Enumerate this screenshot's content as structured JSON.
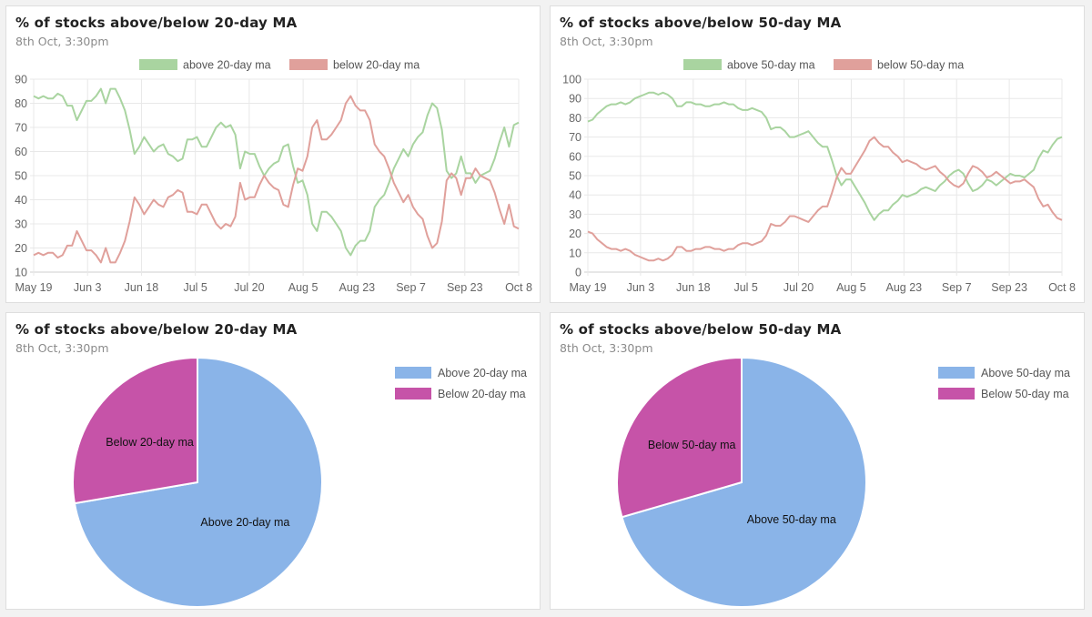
{
  "colors": {
    "above": "#a9d4a0",
    "below": "#e0a09b",
    "pie_above": "#8ab4e8",
    "pie_below": "#c653a8"
  },
  "chart_data": [
    {
      "type": "line",
      "title": "% of stocks above/below 20-day MA",
      "subtitle": "8th Oct, 3:30pm",
      "xlabels": [
        "May 19",
        "Jun 3",
        "Jun 18",
        "Jul 5",
        "Jul 20",
        "Aug 5",
        "Aug 23",
        "Sep 7",
        "Sep 23",
        "Oct 8"
      ],
      "ylim": [
        10,
        90
      ],
      "yticks": [
        10,
        20,
        30,
        40,
        50,
        60,
        70,
        80,
        90
      ],
      "series": [
        {
          "name": "above 20-day ma",
          "color": "#a9d4a0",
          "values": [
            83,
            82,
            83,
            82,
            82,
            84,
            83,
            79,
            79,
            73,
            77,
            81,
            81,
            83,
            86,
            80,
            86,
            86,
            82,
            77,
            69,
            59,
            62,
            66,
            63,
            60,
            62,
            63,
            59,
            58,
            56,
            57,
            65,
            65,
            66,
            62,
            62,
            66,
            70,
            72,
            70,
            71,
            67,
            53,
            60,
            59,
            59,
            54,
            50,
            53,
            55,
            56,
            62,
            63,
            54,
            47,
            48,
            42,
            30,
            27,
            35,
            35,
            33,
            30,
            27,
            20,
            17,
            21,
            23,
            23,
            27,
            37,
            40,
            42,
            47,
            53,
            57,
            61,
            58,
            63,
            66,
            68,
            75,
            80,
            78,
            69,
            52,
            49,
            51,
            58,
            51,
            51,
            47,
            50,
            51,
            52,
            57,
            64,
            70,
            62,
            71,
            72
          ]
        },
        {
          "name": "below 20-day ma",
          "color": "#e0a09b",
          "values": [
            17,
            18,
            17,
            18,
            18,
            16,
            17,
            21,
            21,
            27,
            23,
            19,
            19,
            17,
            14,
            20,
            14,
            14,
            18,
            23,
            31,
            41,
            38,
            34,
            37,
            40,
            38,
            37,
            41,
            42,
            44,
            43,
            35,
            35,
            34,
            38,
            38,
            34,
            30,
            28,
            30,
            29,
            33,
            47,
            40,
            41,
            41,
            46,
            50,
            47,
            45,
            44,
            38,
            37,
            46,
            53,
            52,
            58,
            70,
            73,
            65,
            65,
            67,
            70,
            73,
            80,
            83,
            79,
            77,
            77,
            73,
            63,
            60,
            58,
            53,
            47,
            43,
            39,
            42,
            37,
            34,
            32,
            25,
            20,
            22,
            31,
            48,
            51,
            49,
            42,
            49,
            49,
            53,
            50,
            49,
            48,
            43,
            36,
            30,
            38,
            29,
            28
          ]
        }
      ]
    },
    {
      "type": "line",
      "title": "% of stocks above/below 50-day MA",
      "subtitle": "8th Oct, 3:30pm",
      "xlabels": [
        "May 19",
        "Jun 3",
        "Jun 18",
        "Jul 5",
        "Jul 20",
        "Aug 5",
        "Aug 23",
        "Sep 7",
        "Sep 23",
        "Oct 8"
      ],
      "ylim": [
        0,
        100
      ],
      "yticks": [
        0,
        10,
        20,
        30,
        40,
        50,
        60,
        70,
        80,
        90,
        100
      ],
      "series": [
        {
          "name": "above 50-day ma",
          "color": "#a9d4a0",
          "values": [
            78,
            79,
            82,
            84,
            86,
            87,
            87,
            88,
            87,
            88,
            90,
            91,
            92,
            93,
            93,
            92,
            93,
            92,
            90,
            86,
            86,
            88,
            88,
            87,
            87,
            86,
            86,
            87,
            87,
            88,
            87,
            87,
            85,
            84,
            84,
            85,
            84,
            83,
            80,
            74,
            75,
            75,
            73,
            70,
            70,
            71,
            72,
            73,
            70,
            67,
            65,
            65,
            58,
            50,
            45,
            48,
            48,
            44,
            40,
            36,
            31,
            27,
            30,
            32,
            32,
            35,
            37,
            40,
            39,
            40,
            41,
            43,
            44,
            43,
            42,
            45,
            47,
            50,
            52,
            53,
            51,
            46,
            42,
            43,
            45,
            48,
            47,
            45,
            47,
            49,
            51,
            50,
            50,
            49,
            51,
            53,
            59,
            63,
            62,
            66,
            69,
            70
          ]
        },
        {
          "name": "below 50-day ma",
          "color": "#e0a09b",
          "values": [
            21,
            20,
            17,
            15,
            13,
            12,
            12,
            11,
            12,
            11,
            9,
            8,
            7,
            6,
            6,
            7,
            6,
            7,
            9,
            13,
            13,
            11,
            11,
            12,
            12,
            13,
            13,
            12,
            12,
            11,
            12,
            12,
            14,
            15,
            15,
            14,
            15,
            16,
            19,
            25,
            24,
            24,
            26,
            29,
            29,
            28,
            27,
            26,
            29,
            32,
            34,
            34,
            41,
            49,
            54,
            51,
            51,
            55,
            59,
            63,
            68,
            70,
            67,
            65,
            65,
            62,
            60,
            57,
            58,
            57,
            56,
            54,
            53,
            54,
            55,
            52,
            50,
            47,
            45,
            44,
            46,
            51,
            55,
            54,
            52,
            49,
            50,
            52,
            50,
            48,
            46,
            47,
            47,
            48,
            46,
            44,
            38,
            34,
            35,
            31,
            28,
            27
          ]
        }
      ]
    },
    {
      "type": "pie",
      "title": "% of stocks above/below 20-day MA",
      "subtitle": "8th Oct, 3:30pm",
      "labels": [
        "Above 20-day ma",
        "Below 20-day ma"
      ],
      "values": [
        72.3,
        27.7
      ],
      "colors": [
        "#8ab4e8",
        "#c653a8"
      ]
    },
    {
      "type": "pie",
      "title": "% of stocks above/below 50-day MA",
      "subtitle": "8th Oct, 3:30pm",
      "labels": [
        "Above 50-day ma",
        "Below 50-day ma"
      ],
      "values": [
        70.5,
        29.5
      ],
      "colors": [
        "#8ab4e8",
        "#c653a8"
      ]
    }
  ]
}
